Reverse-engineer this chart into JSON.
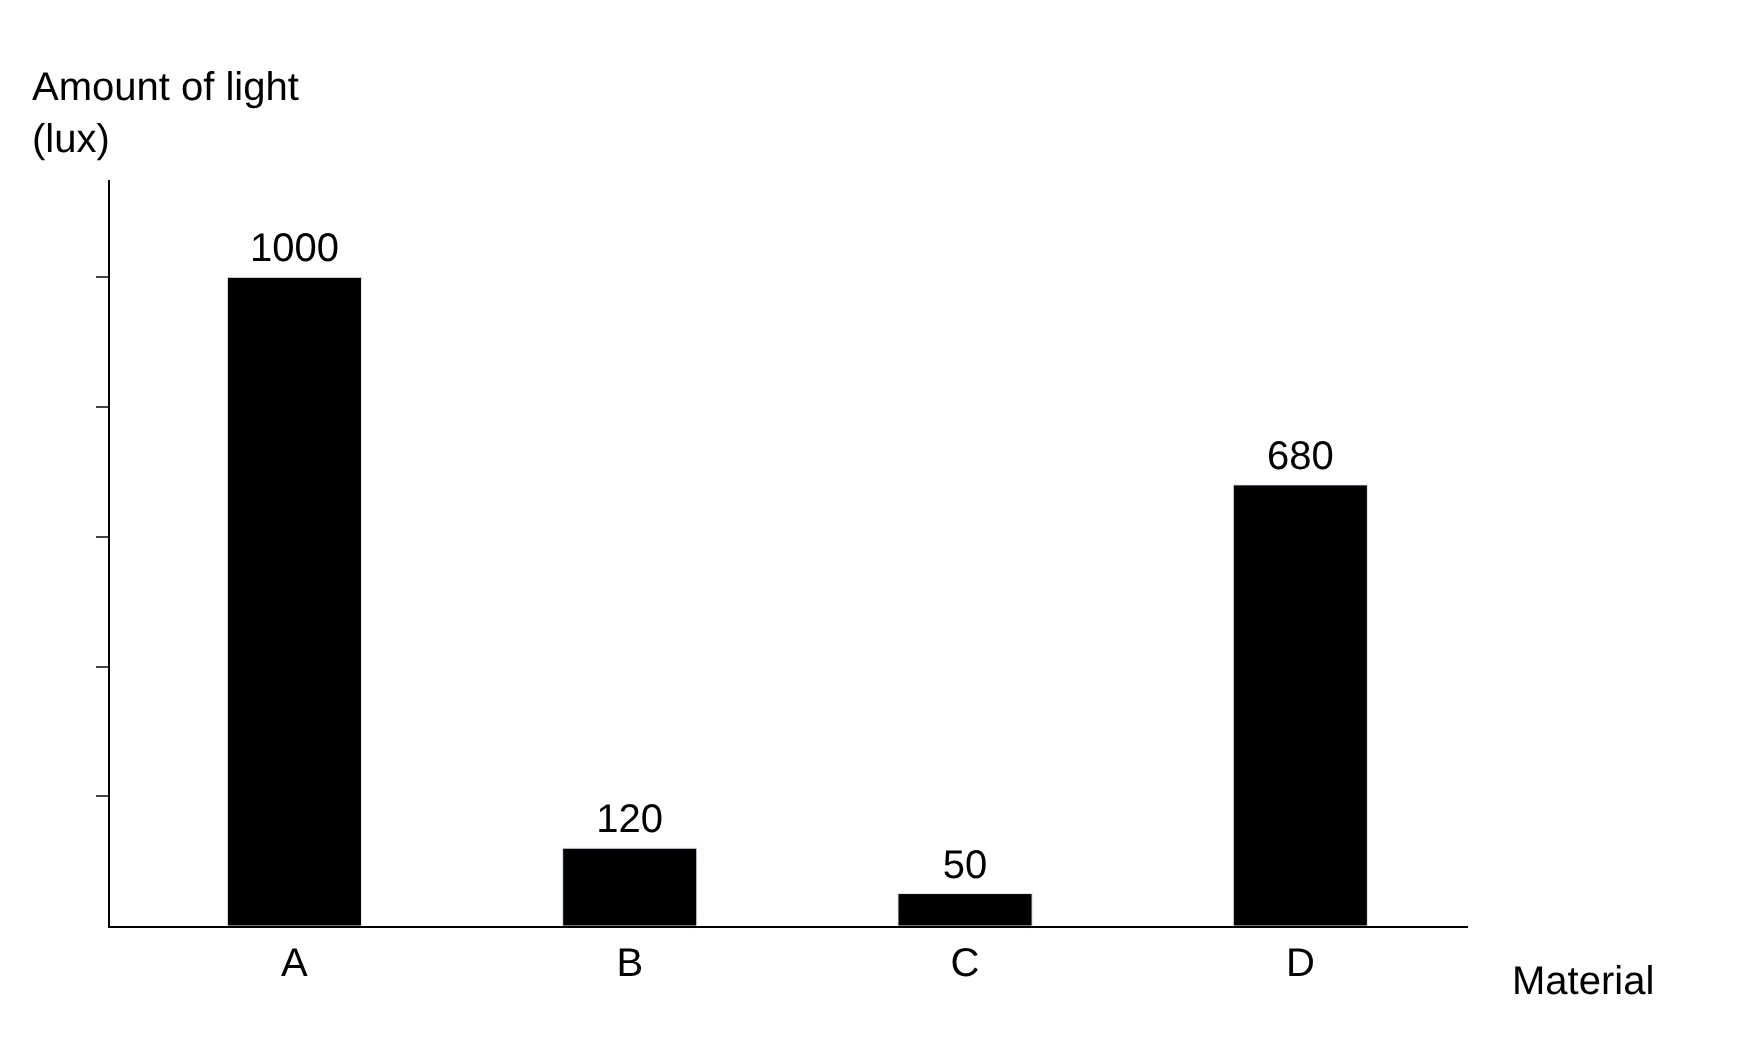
{
  "chart_data": {
    "type": "bar",
    "ylabel": "Amount of light\n(lux)",
    "xlabel": "Material",
    "categories": [
      "A",
      "B",
      "C",
      "D"
    ],
    "values": [
      1000,
      120,
      50,
      680
    ],
    "color": "#000000",
    "data_labels": true,
    "ylim": [
      0,
      1150
    ],
    "yticks": [
      {
        "value": 200,
        "label": null
      },
      {
        "value": 400,
        "label": null
      },
      {
        "value": 600,
        "label": null
      },
      {
        "value": 800,
        "label": null
      },
      {
        "value": 1000,
        "label": null
      }
    ],
    "tick_labels": "x",
    "legend": false
  }
}
